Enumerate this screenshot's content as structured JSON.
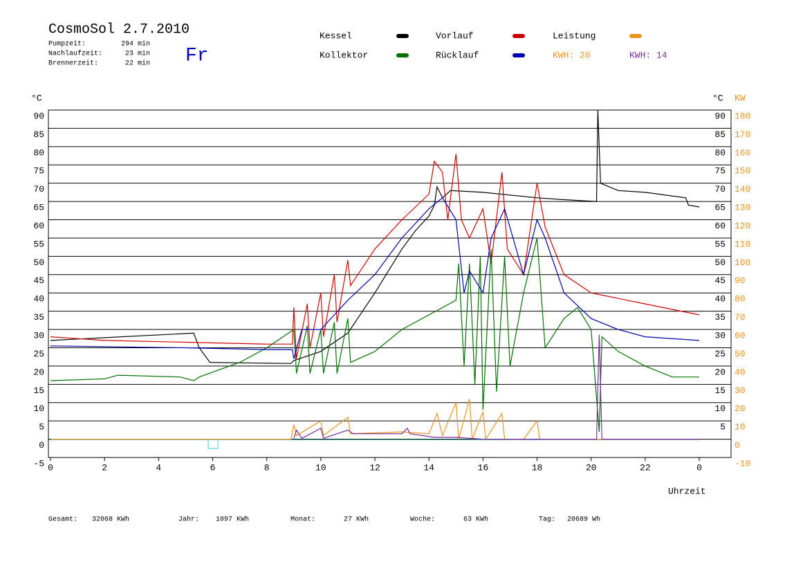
{
  "header": {
    "title": "CosmoSol 2.7.2010",
    "day": "Fr",
    "info": [
      {
        "label": "Pumpzeit:",
        "value": "294 min"
      },
      {
        "label": "Nachlaufzeit:",
        "value": "23 min"
      },
      {
        "label": "Brennerzeit:",
        "value": "22 min"
      }
    ]
  },
  "kwh": [
    {
      "label": "KWH: 20",
      "color": "#e8941e"
    },
    {
      "label": "KWH: 14",
      "color": "#7b2a9c"
    }
  ],
  "chart_data": {
    "type": "line",
    "y_label": "°C",
    "y_label_right": "°C",
    "y2_label": "KW",
    "x_label": "Uhrzeit",
    "xlim": [
      0,
      24
    ],
    "xticks": [
      0,
      2,
      4,
      6,
      8,
      10,
      12,
      14,
      16,
      18,
      20,
      22,
      {
        "value": 24,
        "label": "0"
      }
    ],
    "ylim": [
      -5,
      90
    ],
    "yticks": [
      -5,
      0,
      5,
      10,
      15,
      20,
      25,
      30,
      35,
      40,
      45,
      50,
      55,
      60,
      65,
      70,
      75,
      80,
      85,
      90
    ],
    "yticks_right": [
      5,
      10,
      15,
      20,
      25,
      30,
      35,
      40,
      45,
      50,
      55,
      60,
      65,
      70,
      75,
      80,
      85,
      90
    ],
    "y2lim": [
      -10,
      180
    ],
    "y2ticks": [
      -10,
      0,
      10,
      20,
      30,
      40,
      50,
      60,
      70,
      80,
      90,
      100,
      110,
      120,
      130,
      140,
      150,
      160,
      170,
      180
    ],
    "grid": true,
    "series": [
      {
        "name": "Kessel",
        "color": "#000000",
        "x": [
          0,
          5.3,
          5.5,
          5.9,
          8.9,
          9.0,
          10,
          11,
          12,
          13,
          13.5,
          14,
          14.2,
          14.3,
          14.5,
          14.8,
          16,
          18,
          19,
          20.2,
          20.25,
          20.35,
          21,
          22,
          23.5,
          23.6,
          24
        ],
        "values": [
          27,
          29,
          25,
          21,
          20.7,
          21.5,
          24,
          29,
          40,
          52,
          57,
          61,
          64,
          69,
          66,
          68,
          67.5,
          66,
          65.5,
          65,
          90,
          70,
          68,
          67.5,
          66,
          64,
          63.5
        ]
      },
      {
        "name": "Vorlauf",
        "color": "#d00000",
        "x": [
          0,
          2,
          5,
          8,
          8.95,
          9.0,
          9.1,
          9.5,
          9.6,
          10,
          10.1,
          10.5,
          10.6,
          11,
          11.1,
          12,
          13,
          14,
          14.2,
          14.5,
          14.7,
          15,
          15.2,
          15.5,
          16,
          16.3,
          16.7,
          16.9,
          17.5,
          18,
          18.3,
          19,
          20,
          22,
          24
        ],
        "values": [
          28,
          27,
          26.5,
          26,
          26,
          36,
          22,
          37,
          25,
          40,
          28,
          45,
          32,
          49,
          42,
          52,
          60,
          67,
          76,
          73,
          60,
          78,
          60,
          55,
          63,
          48,
          73,
          52,
          45,
          70,
          58,
          45,
          40,
          37,
          34
        ]
      },
      {
        "name": "Kollektor",
        "color": "#007000",
        "x": [
          0,
          2,
          2.5,
          4.8,
          5.3,
          5.5,
          7,
          8,
          9,
          9.1,
          9.5,
          9.6,
          10,
          10.1,
          10.5,
          10.6,
          11,
          11.1,
          12,
          13,
          14,
          15,
          15.1,
          15.3,
          15.5,
          15.7,
          15.9,
          16,
          16.3,
          16.5,
          16.8,
          17,
          17.5,
          18,
          18.3,
          19,
          19.5,
          20,
          20.3,
          20.4,
          21,
          22,
          23,
          24
        ],
        "values": [
          16,
          16.5,
          17.5,
          17,
          16,
          17,
          21,
          25,
          30,
          18,
          31,
          18,
          30,
          18,
          32,
          18,
          33,
          21,
          24,
          30,
          34,
          38,
          48,
          20,
          48,
          15,
          50,
          8,
          52,
          13,
          50,
          20,
          40,
          55,
          25,
          33,
          36,
          30,
          2,
          28,
          24,
          20,
          17,
          17
        ]
      },
      {
        "name": "Rücklauf",
        "color": "#0000b0",
        "x": [
          0,
          5,
          8,
          8.95,
          9.0,
          9.3,
          10,
          10.5,
          11,
          12,
          13,
          14,
          14.5,
          15,
          15.3,
          15.5,
          16,
          16.3,
          16.8,
          17.5,
          18,
          18.3,
          19,
          20,
          21,
          22,
          24
        ],
        "values": [
          25.5,
          25,
          24.5,
          24.5,
          22,
          30,
          30,
          34,
          38,
          45,
          55,
          63,
          66,
          60,
          40,
          46,
          40,
          55,
          63,
          45,
          60,
          55,
          40,
          33,
          30,
          28,
          27
        ]
      },
      {
        "name": "Leistung",
        "color": "#e8941e",
        "axis": "y2",
        "x": [
          0,
          8.9,
          9,
          9.1,
          10,
          10.1,
          11,
          11.1,
          13,
          14,
          14.3,
          14.5,
          15,
          15.1,
          15.5,
          15.6,
          16,
          16.1,
          16.7,
          16.8,
          17.5,
          18,
          18.1,
          20.2,
          24
        ],
        "values": [
          0,
          0,
          8,
          2,
          10,
          2,
          12,
          3,
          4,
          3,
          14,
          2,
          20,
          0,
          22,
          0,
          15,
          0,
          14,
          0,
          0,
          10,
          0,
          0,
          0
        ]
      },
      {
        "color": "#7b2a9c",
        "axis": "y2",
        "x": [
          9,
          9.1,
          9.3,
          10,
          10.1,
          11,
          11.2,
          13,
          13.2,
          13.3,
          14.2,
          15,
          16,
          20.2,
          20.3,
          20.4,
          24
        ],
        "values": [
          0.5,
          5,
          0.5,
          6,
          0.5,
          5,
          3,
          3,
          6,
          3,
          1,
          1,
          0,
          0,
          57,
          0,
          0
        ]
      }
    ]
  },
  "footer": [
    {
      "label": "Gesamt:",
      "value": "32068 KWh"
    },
    {
      "label": "Jahr:",
      "value": "1097 KWh"
    },
    {
      "label": "Monat:",
      "value": "27 KWh"
    },
    {
      "label": "Woche:",
      "value": "63 KWh"
    },
    {
      "label": "Tag:",
      "value": "20689 Wh"
    }
  ]
}
